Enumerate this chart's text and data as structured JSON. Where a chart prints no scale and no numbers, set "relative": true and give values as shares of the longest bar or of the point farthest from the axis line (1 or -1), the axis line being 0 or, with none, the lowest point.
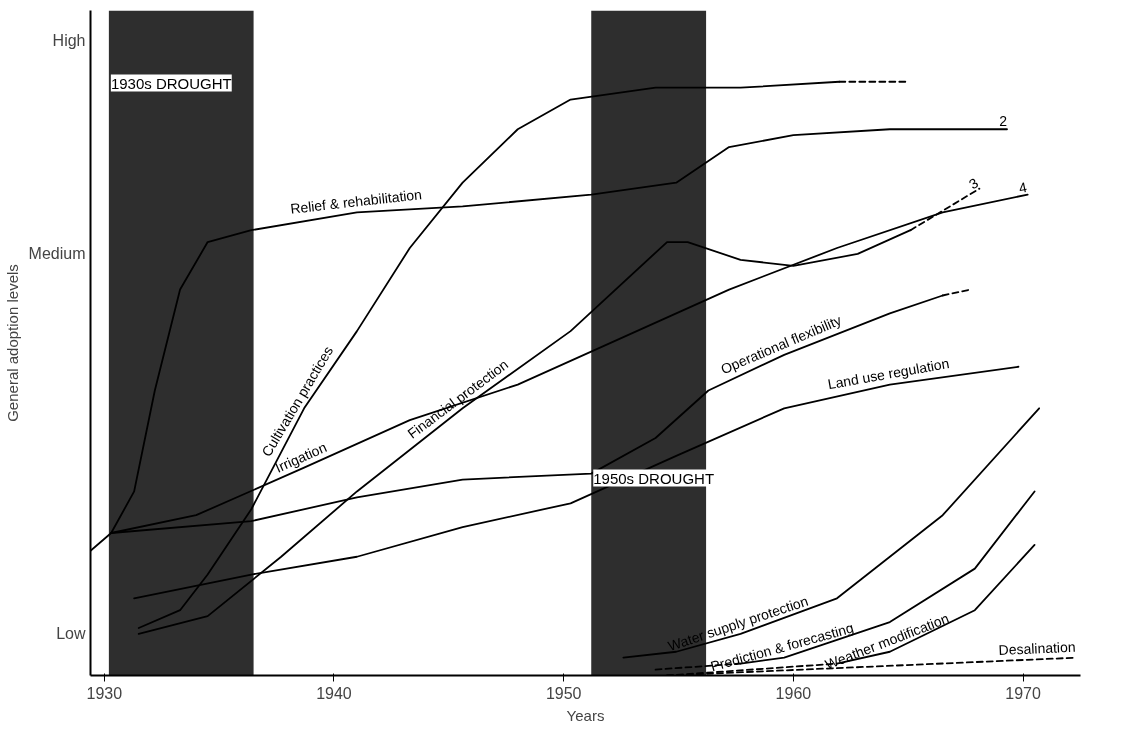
{
  "chart_data": {
    "type": "line",
    "xlabel": "Years",
    "ylabel": "General adoption levels",
    "relative": true,
    "xlim": [
      1929.4,
      1972.5
    ],
    "xticks": [
      1930,
      1940,
      1950,
      1960,
      1970
    ],
    "grid": false,
    "line_style": "solid",
    "marker": "none",
    "bands": [
      {
        "axis": "x",
        "from": 1930.2,
        "to": 1936.5,
        "label": "1930s DROUGHT",
        "color": "#2e2e2e"
      },
      {
        "axis": "x",
        "from": 1951.2,
        "to": 1956.2,
        "label": "1950s DROUGHT",
        "color": "#2e2e2e"
      }
    ],
    "series": [
      {
        "color": "#000000",
        "x": [
          1931.5,
          1933.3,
          1934.5,
          1936.4,
          1938.7,
          1941.0,
          1943.3,
          1945.6,
          1948.0,
          1950.3,
          1954.0,
          1957.7,
          1962.0
        ],
        "values": [
          0.08,
          0.11,
          0.17,
          0.28,
          0.45,
          0.58,
          0.72,
          0.83,
          0.92,
          0.97,
          0.99,
          0.99,
          1
        ]
      },
      {
        "color": "#000000",
        "line_style": "dashed",
        "x": [
          1962.0,
          1964.9
        ],
        "values": [
          1,
          1
        ]
      },
      {
        "color": "#000000",
        "x": [
          1929.4,
          1930.3,
          1931.3,
          1932.2,
          1933.3,
          1934.5,
          1936.4,
          1941.0,
          1945.6,
          1951.2,
          1954.9,
          1957.2,
          1960.0,
          1964.2,
          1969.3
        ],
        "values": [
          0.21,
          0.24,
          0.31,
          0.48,
          0.65,
          0.73,
          0.75,
          0.78,
          0.79,
          0.81,
          0.83,
          0.89,
          0.91,
          0.92,
          0.92
        ]
      },
      {
        "color": "#000000",
        "x": [
          1931.5,
          1934.5,
          1937.7,
          1941.0,
          1945.6,
          1950.3,
          1954.5,
          1955.4,
          1957.7,
          1960.0,
          1962.8,
          1965.1
        ],
        "values": [
          0.07,
          0.1,
          0.2,
          0.31,
          0.45,
          0.58,
          0.73,
          0.73,
          0.7,
          0.69,
          0.71,
          0.75
        ]
      },
      {
        "color": "#000000",
        "line_style": "dashed",
        "x": [
          1965.1,
          1968.1
        ],
        "values": [
          0.75,
          0.82
        ]
      },
      {
        "color": "#000000",
        "x": [
          1930.3,
          1934.0,
          1938.7,
          1943.3,
          1948.0,
          1952.6,
          1957.2,
          1961.9,
          1966.5,
          1970.2
        ],
        "values": [
          0.24,
          0.27,
          0.35,
          0.43,
          0.49,
          0.57,
          0.65,
          0.72,
          0.78,
          0.81
        ]
      },
      {
        "color": "#000000",
        "x": [
          1930.3,
          1936.4,
          1941.0,
          1945.6,
          1951.2,
          1954.0,
          1956.3,
          1959.6,
          1964.2,
          1966.5
        ],
        "values": [
          0.24,
          0.26,
          0.3,
          0.33,
          0.34,
          0.4,
          0.48,
          0.54,
          0.61,
          0.64
        ]
      },
      {
        "color": "#000000",
        "line_style": "dashed",
        "x": [
          1966.5,
          1967.7
        ],
        "values": [
          0.64,
          0.65
        ]
      },
      {
        "color": "#000000",
        "x": [
          1931.3,
          1936.4,
          1941.0,
          1945.6,
          1950.3,
          1954.9,
          1959.6,
          1964.2,
          1969.8
        ],
        "values": [
          0.13,
          0.17,
          0.2,
          0.25,
          0.29,
          0.37,
          0.45,
          0.49,
          0.52
        ]
      },
      {
        "color": "#000000",
        "x": [
          1952.6,
          1954.9,
          1957.7,
          1961.9,
          1966.5,
          1970.7
        ],
        "values": [
          0.03,
          0.04,
          0.07,
          0.13,
          0.27,
          0.45
        ]
      },
      {
        "color": "#000000",
        "line_style": "dashed",
        "x": [
          1954.0,
          1957.7
        ],
        "values": [
          0.01,
          0.02
        ]
      },
      {
        "color": "#000000",
        "x": [
          1957.7,
          1959.6,
          1964.2,
          1967.9,
          1970.5
        ],
        "values": [
          0.02,
          0.03,
          0.09,
          0.18,
          0.31
        ]
      },
      {
        "color": "#000000",
        "line_style": "dashed",
        "x": [
          1954.5,
          1961.9
        ],
        "values": [
          0,
          0.02
        ]
      },
      {
        "color": "#000000",
        "x": [
          1961.9,
          1964.2,
          1967.9,
          1970.5
        ],
        "values": [
          0.02,
          0.04,
          0.11,
          0.22
        ]
      },
      {
        "color": "#000000",
        "line_style": "dashed",
        "x": [
          1954.5,
          1972.3
        ],
        "values": [
          0,
          0.03
        ]
      }
    ],
    "annotations": [
      "Low",
      "Medium",
      "High",
      {
        "text": "Relief & rehabilitation",
        "x": 1941.0,
        "y": 0.78
      },
      {
        "text": "Cultivation practices",
        "x": 1938.7,
        "y": 0.45
      },
      {
        "text": "Financial protection",
        "x": 1945.6,
        "y": 0.45
      },
      {
        "text": "Irrigation",
        "x": 1938.7,
        "y": 0.35
      },
      {
        "text": "Operational flexibility",
        "x": 1959.6,
        "y": 0.54
      },
      {
        "text": "Land use regulation",
        "x": 1964.2,
        "y": 0.49
      },
      {
        "text": "Water supply protection",
        "x": 1957.7,
        "y": 0.07
      },
      {
        "text": "Prediction & forecasting",
        "x": 1959.6,
        "y": 0.03
      },
      {
        "text": "Weather modification",
        "x": 1964.2,
        "y": 0.04
      },
      {
        "text": "Desalination",
        "x": 1972.3,
        "y": 0.03
      },
      {
        "text": "2",
        "x": 1969.3,
        "y": 0.92
      },
      {
        "text": "3",
        "x": 1968.1,
        "y": 0.82
      },
      {
        "text": "4",
        "x": 1970.2,
        "y": 0.81
      }
    ]
  }
}
